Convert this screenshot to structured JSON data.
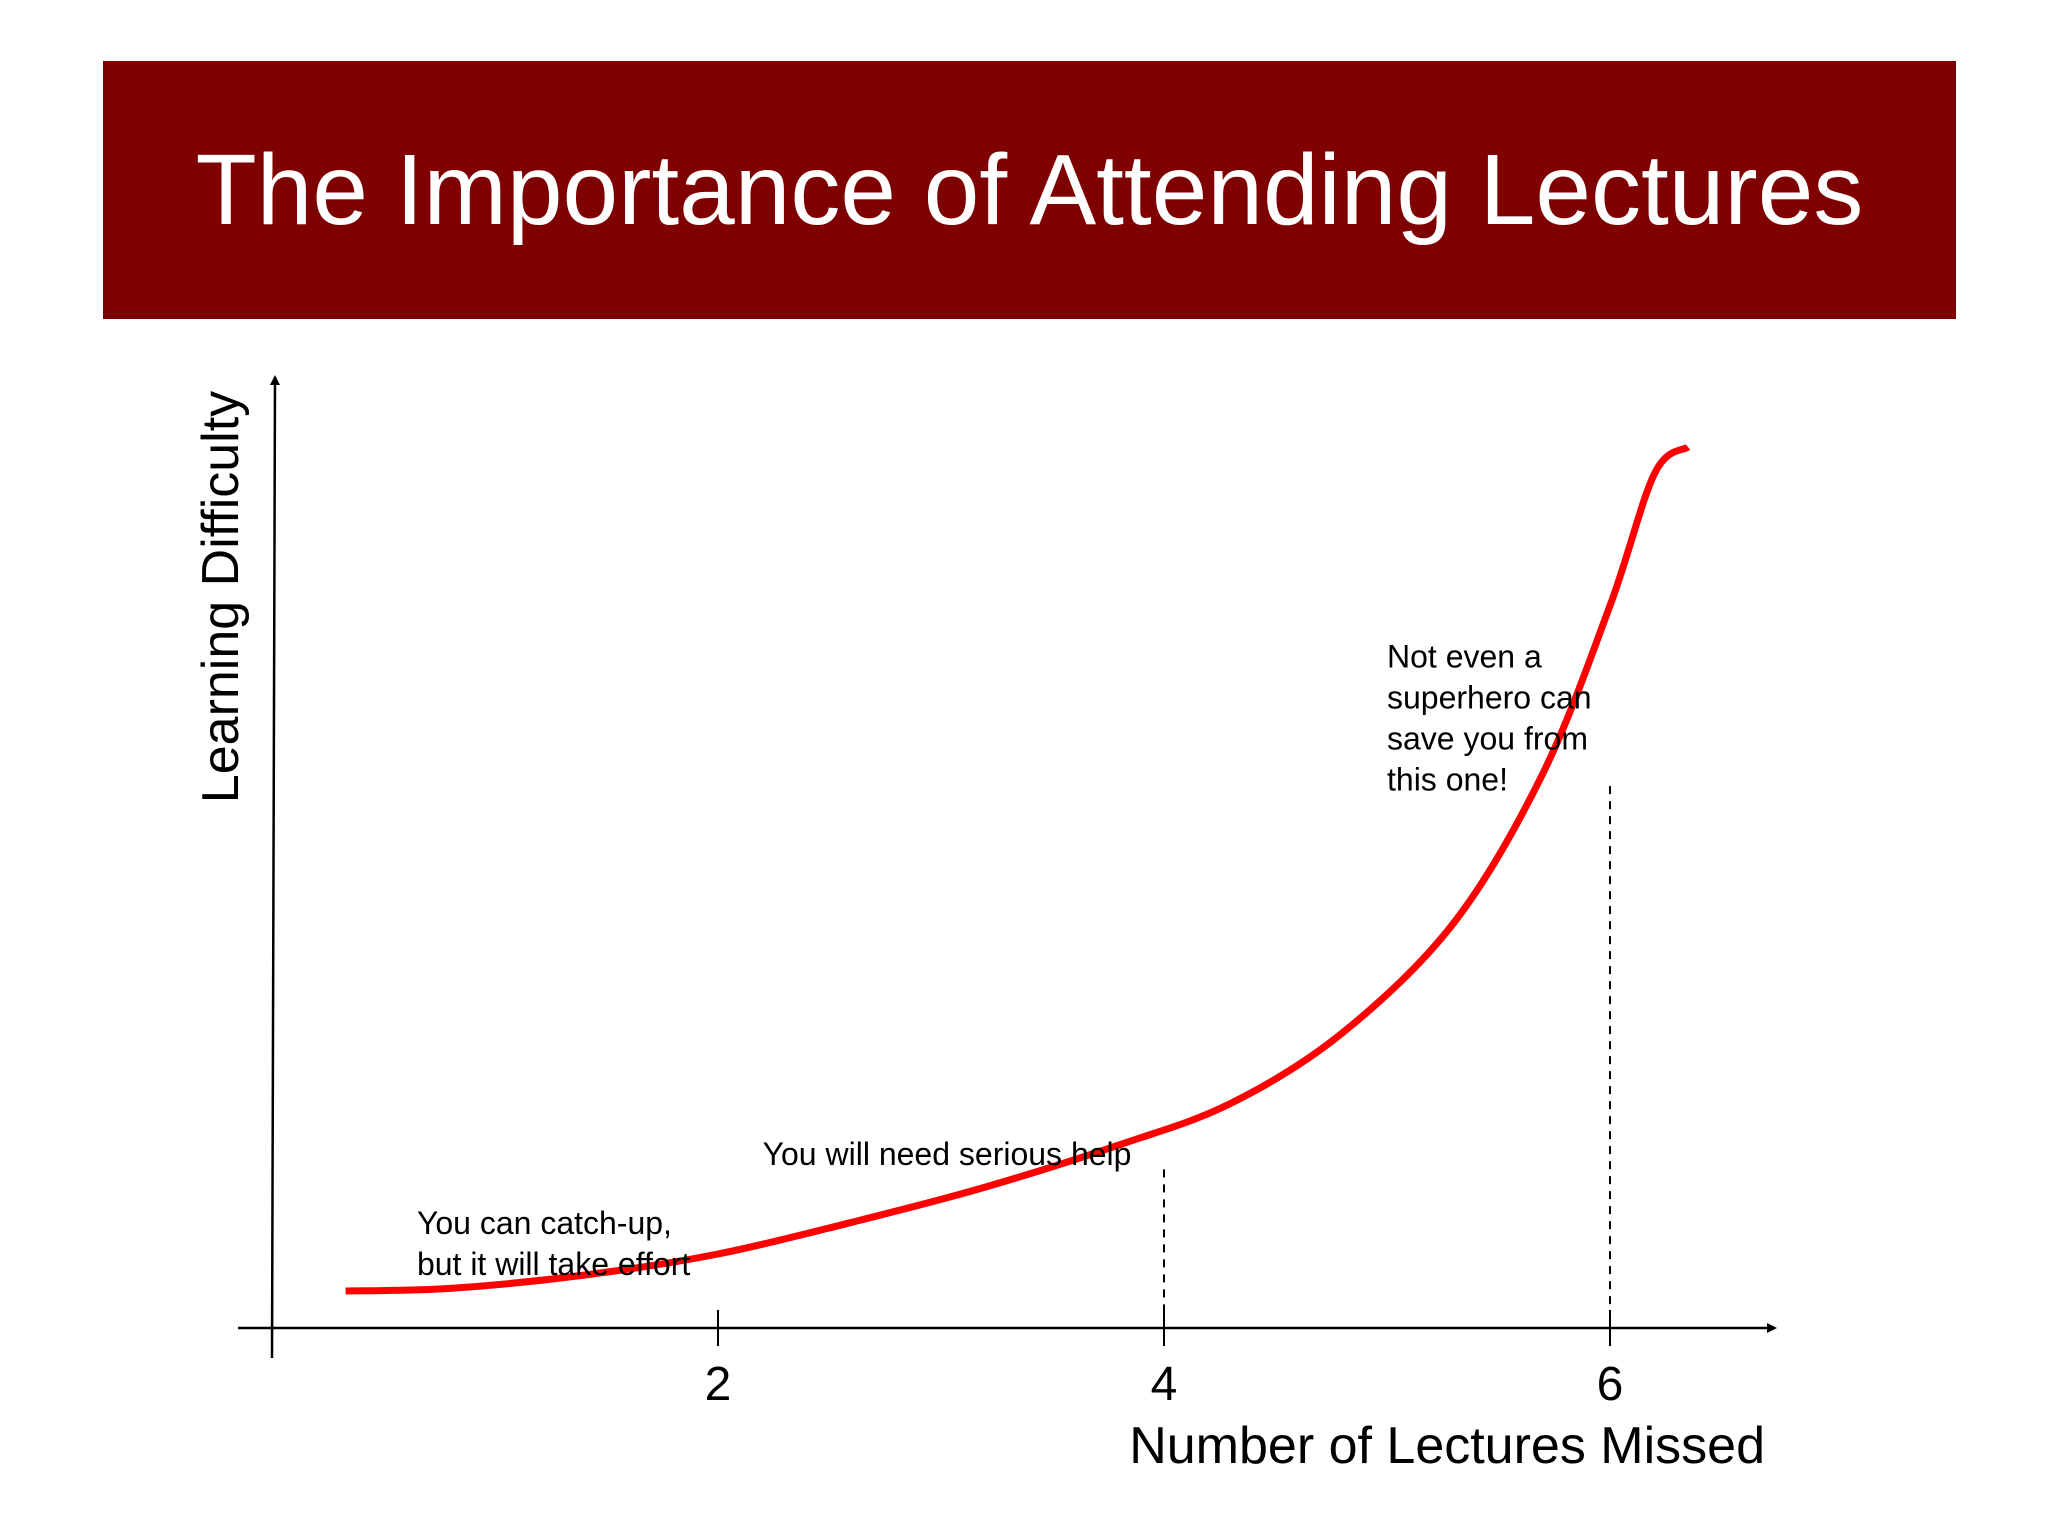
{
  "slide": {
    "title": "The Importance of Attending Lectures",
    "banner_color": "#7f0000"
  },
  "chart_data": {
    "type": "line",
    "title": "The Importance of Attending Lectures",
    "xlabel": "Number of Lectures Missed",
    "ylabel": "Learning Difficulty",
    "x_ticks": [
      2,
      4,
      6
    ],
    "xlim": [
      0,
      6.9
    ],
    "ylim": [
      0,
      10
    ],
    "grid": false,
    "legend": "none",
    "series": [
      {
        "color": "#ff0000",
        "x": [
          0.33,
          0.8,
          1.4,
          2.0,
          2.6,
          3.2,
          3.8,
          4.3,
          4.8,
          5.3,
          5.7,
          6.0,
          6.2,
          6.35
        ],
        "y": [
          0.42,
          0.45,
          0.6,
          0.84,
          1.2,
          1.6,
          2.08,
          2.55,
          3.35,
          4.6,
          6.3,
          8.2,
          9.7,
          10.0
        ]
      }
    ],
    "reference_lines": [
      {
        "x": 4,
        "y": 1.8,
        "style": "dashed"
      },
      {
        "x": 6,
        "y": 6.15,
        "style": "dashed"
      }
    ],
    "annotations": [
      {
        "lines": [
          "You can catch-up,",
          "but it will take effort"
        ],
        "x": 0.65,
        "y": 0.6
      },
      {
        "lines": [
          "You will need serious help"
        ],
        "x": 2.2,
        "y": 1.85
      },
      {
        "lines": [
          "Not even a",
          "superhero can",
          "save you from",
          "this one!"
        ],
        "x": 5.0,
        "y": 6.1
      }
    ]
  }
}
